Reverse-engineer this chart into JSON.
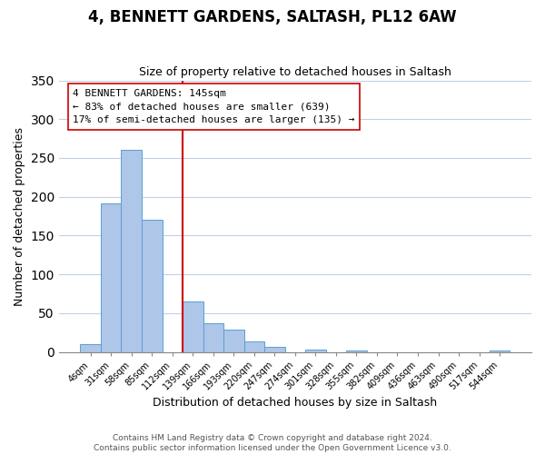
{
  "title": "4, BENNETT GARDENS, SALTASH, PL12 6AW",
  "subtitle": "Size of property relative to detached houses in Saltash",
  "xlabel": "Distribution of detached houses by size in Saltash",
  "ylabel": "Number of detached properties",
  "bar_color": "#aec6e8",
  "bar_edge_color": "#5a9fd4",
  "bin_labels": [
    "4sqm",
    "31sqm",
    "58sqm",
    "85sqm",
    "112sqm",
    "139sqm",
    "166sqm",
    "193sqm",
    "220sqm",
    "247sqm",
    "274sqm",
    "301sqm",
    "328sqm",
    "355sqm",
    "382sqm",
    "409sqm",
    "436sqm",
    "463sqm",
    "490sqm",
    "517sqm",
    "544sqm"
  ],
  "bar_heights": [
    10,
    191,
    260,
    170,
    0,
    65,
    37,
    29,
    14,
    6,
    0,
    3,
    0,
    2,
    0,
    0,
    0,
    0,
    0,
    0,
    2
  ],
  "ylim": [
    0,
    350
  ],
  "yticks": [
    0,
    50,
    100,
    150,
    200,
    250,
    300,
    350
  ],
  "property_line_label": "4 BENNETT GARDENS: 145sqm",
  "annotation_line1": "← 83% of detached houses are smaller (639)",
  "annotation_line2": "17% of semi-detached houses are larger (135) →",
  "vline_x": 4.5,
  "vline_color": "#cc0000",
  "footnote1": "Contains HM Land Registry data © Crown copyright and database right 2024.",
  "footnote2": "Contains public sector information licensed under the Open Government Licence v3.0.",
  "background_color": "#ffffff",
  "grid_color": "#c0d0e8"
}
